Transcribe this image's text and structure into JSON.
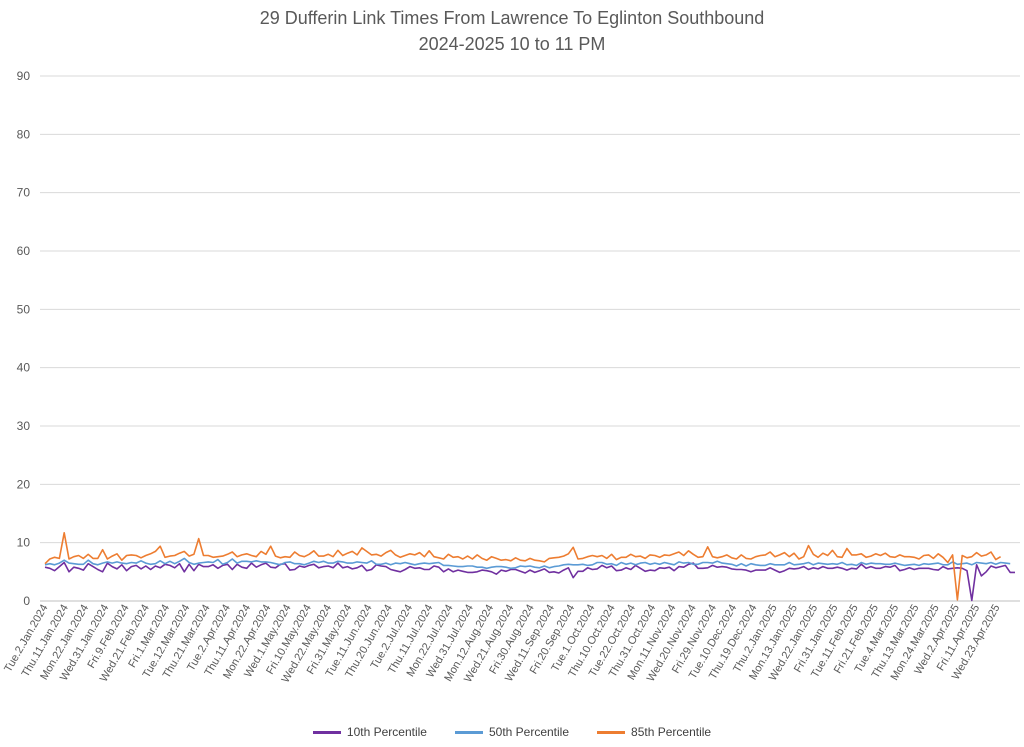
{
  "chart_data": {
    "type": "line",
    "title": "29 Dufferin Link Times From Lawrence To Eglinton Southbound",
    "subtitle": "2024-2025 10 to 11 PM",
    "xlabel": "",
    "ylabel": "",
    "ylim": [
      0,
      90
    ],
    "yticks": [
      0,
      10,
      20,
      30,
      40,
      50,
      60,
      70,
      80,
      90
    ],
    "grid": true,
    "legend_position": "bottom",
    "x_tick_labels": [
      "Tue.2.Jan.2024",
      "Thu.11.Jan.2024",
      "Mon.22.Jan.2024",
      "Wed.31.Jan.2024",
      "Fri.9.Feb.2024",
      "Wed.21.Feb.2024",
      "Fri.1.Mar.2024",
      "Tue.12.Mar.2024",
      "Thu.21.Mar.2024",
      "Tue.2.Apr.2024",
      "Thu.11.Apr.2024",
      "Mon.22.Apr.2024",
      "Wed.1.May.2024",
      "Fri.10.May.2024",
      "Wed.22.May.2024",
      "Fri.31.May.2024",
      "Tue.11.Jun.2024",
      "Thu.20.Jun.2024",
      "Tue.2.Jul.2024",
      "Thu.11.Jul.2024",
      "Mon.22.Jul.2024",
      "Wed.31.Jul.2024",
      "Mon.12.Aug.2024",
      "Wed.21.Aug.2024",
      "Fri.30.Aug.2024",
      "Wed.11.Sep.2024",
      "Fri.20.Sep.2024",
      "Tue.1.Oct.2024",
      "Thu.10.Oct.2024",
      "Tue.22.Oct.2024",
      "Thu.31.Oct.2024",
      "Mon.11.Nov.2024",
      "Wed.20.Nov.2024",
      "Fri.29.Nov.2024",
      "Tue.10.Dec.2024",
      "Thu.19.Dec.2024",
      "Thu.2.Jan.2025",
      "Mon.13.Jan.2025",
      "Wed.22.Jan.2025",
      "Fri.31.Jan.2025",
      "Tue.11.Feb.2025",
      "Fri.21.Feb.2025",
      "Tue.4.Mar.2025",
      "Thu.13.Mar.2025",
      "Mon.24.Mar.2025",
      "Wed.2.Apr.2025",
      "Fri.11.Apr.2025",
      "Wed.23.Apr.2025"
    ],
    "series": [
      {
        "name": "10th Percentile",
        "color": "#7030a0",
        "values": [
          5.8,
          5.6,
          5.2,
          5.9,
          6.6,
          5.0,
          5.8,
          5.6,
          5.3,
          6.4,
          5.9,
          5.4,
          5.0,
          6.5,
          5.9,
          5.5,
          6.2,
          5.2,
          5.9,
          6.1,
          5.5,
          6.0,
          5.4,
          6.0,
          5.7,
          6.3,
          6.1,
          5.7,
          6.4,
          5.0,
          6.3,
          5.2,
          6.3,
          5.9,
          5.9,
          6.2,
          5.6,
          6.1,
          6.3,
          5.4,
          6.3,
          5.8,
          5.6,
          6.5,
          5.8,
          6.2,
          6.5,
          5.8,
          5.7,
          6.3,
          6.4,
          5.3,
          5.4,
          6.0,
          5.8,
          6.1,
          6.3,
          5.7,
          5.9,
          6.0,
          5.7,
          6.5,
          5.7,
          5.9,
          5.5,
          5.7,
          6.1,
          5.2,
          5.4,
          6.2,
          6.0,
          5.9,
          5.4,
          5.2,
          5.0,
          5.4,
          5.9,
          5.6,
          5.7,
          5.4,
          5.4,
          6.0,
          5.8,
          5.0,
          5.5,
          5.0,
          5.3,
          5.1,
          4.9,
          4.9,
          5.0,
          5.3,
          5.2,
          5.0,
          4.6,
          5.3,
          5.1,
          5.4,
          5.4,
          5.1,
          4.8,
          5.3,
          4.9,
          5.2,
          5.5,
          4.9,
          5.0,
          4.8,
          5.3,
          5.7,
          4.0,
          5.1,
          5.1,
          5.7,
          5.4,
          5.5,
          6.1,
          5.7,
          6.0,
          5.2,
          5.3,
          5.7,
          5.4,
          6.1,
          5.6,
          5.1,
          5.3,
          5.2,
          5.7,
          5.6,
          5.8,
          5.2,
          5.9,
          5.8,
          6.3,
          6.5,
          5.6,
          5.6,
          5.7,
          6.1,
          5.8,
          5.9,
          5.8,
          5.5,
          5.4,
          5.4,
          5.3,
          5.0,
          5.3,
          5.3,
          5.3,
          5.7,
          5.3,
          4.9,
          5.2,
          5.6,
          5.5,
          5.6,
          5.9,
          5.4,
          5.7,
          5.5,
          5.9,
          5.6,
          5.6,
          5.8,
          5.6,
          5.3,
          5.6,
          5.5,
          6.3,
          5.6,
          5.9,
          5.6,
          5.6,
          5.9,
          5.8,
          6.1,
          5.2,
          5.4,
          5.7,
          5.4,
          5.6,
          5.6,
          5.6,
          5.4,
          5.3,
          5.9,
          5.5,
          5.6,
          5.7,
          5.6,
          5.2,
          0.1,
          6.2,
          4.3,
          5.0,
          6.0,
          5.7,
          5.9,
          6.1,
          4.9,
          4.9
        ]
      },
      {
        "name": "50th Percentile",
        "color": "#5b9bd5",
        "values": [
          6.2,
          6.4,
          6.2,
          6.5,
          7.0,
          6.5,
          6.4,
          6.3,
          6.3,
          7.0,
          6.4,
          6.2,
          6.5,
          6.7,
          6.5,
          6.7,
          6.5,
          6.4,
          6.6,
          6.5,
          6.9,
          6.5,
          6.3,
          6.4,
          6.9,
          6.4,
          6.8,
          6.4,
          6.8,
          7.3,
          6.6,
          6.3,
          6.5,
          6.6,
          6.7,
          6.6,
          7.1,
          6.3,
          6.6,
          7.2,
          6.5,
          6.8,
          6.8,
          6.7,
          6.9,
          6.7,
          6.7,
          6.6,
          6.4,
          6.2,
          6.6,
          6.7,
          6.4,
          6.4,
          6.2,
          6.5,
          6.8,
          6.6,
          6.8,
          6.5,
          6.5,
          6.8,
          6.7,
          6.5,
          6.5,
          6.7,
          6.6,
          6.5,
          6.9,
          6.3,
          6.3,
          6.5,
          6.2,
          6.5,
          6.4,
          6.6,
          6.4,
          6.2,
          6.4,
          6.5,
          6.4,
          6.5,
          6.6,
          6.1,
          6.1,
          6.0,
          5.9,
          5.9,
          6.0,
          6.0,
          5.8,
          5.8,
          5.6,
          5.8,
          5.9,
          5.9,
          5.8,
          5.6,
          5.7,
          6.0,
          5.9,
          6.0,
          5.8,
          5.7,
          6.0,
          5.7,
          5.9,
          6.0,
          6.2,
          6.3,
          6.2,
          6.2,
          6.3,
          6.1,
          6.2,
          6.6,
          6.6,
          6.3,
          6.4,
          6.1,
          6.6,
          6.3,
          6.5,
          6.2,
          6.5,
          6.6,
          6.3,
          6.5,
          6.3,
          6.6,
          6.4,
          6.2,
          6.7,
          6.5,
          6.6,
          6.3,
          6.3,
          6.6,
          6.6,
          6.5,
          6.8,
          6.5,
          6.4,
          6.3,
          6.0,
          6.4,
          6.0,
          6.4,
          6.2,
          6.1,
          6.1,
          6.4,
          6.2,
          6.2,
          6.2,
          6.6,
          6.2,
          6.3,
          6.4,
          6.6,
          6.2,
          6.5,
          6.4,
          6.3,
          6.4,
          6.3,
          6.6,
          6.2,
          6.3,
          6.1,
          6.6,
          6.3,
          6.5,
          6.4,
          6.4,
          6.3,
          6.3,
          6.5,
          6.3,
          6.1,
          6.2,
          6.3,
          6.1,
          6.4,
          6.3,
          6.4,
          6.5,
          6.2,
          6.2,
          6.7,
          6.3,
          6.4,
          6.5,
          6.2,
          6.6,
          6.5,
          6.4,
          6.6,
          6.3,
          6.6,
          6.5,
          6.4
        ]
      },
      {
        "name": "85th Percentile",
        "color": "#ed7d31",
        "values": [
          6.4,
          7.2,
          7.5,
          7.3,
          11.7,
          7.2,
          7.6,
          7.8,
          7.3,
          8.0,
          7.3,
          7.3,
          8.8,
          7.2,
          7.7,
          8.1,
          7.0,
          7.8,
          7.9,
          7.8,
          7.4,
          7.8,
          8.1,
          8.5,
          9.4,
          7.5,
          7.7,
          7.8,
          8.2,
          8.5,
          7.7,
          8.0,
          10.7,
          7.8,
          7.8,
          7.5,
          7.6,
          7.7,
          8.0,
          8.4,
          7.6,
          7.9,
          8.1,
          7.8,
          7.6,
          8.5,
          8.0,
          9.4,
          7.7,
          7.4,
          7.6,
          7.5,
          8.4,
          7.8,
          7.6,
          8.0,
          8.6,
          7.7,
          7.7,
          8.0,
          7.6,
          8.7,
          7.8,
          8.2,
          8.5,
          7.9,
          9.1,
          8.5,
          7.9,
          8.0,
          7.7,
          8.3,
          8.7,
          7.9,
          7.5,
          7.8,
          8.1,
          7.9,
          8.3,
          7.6,
          8.6,
          7.6,
          7.4,
          7.2,
          8.0,
          7.5,
          7.6,
          7.2,
          7.7,
          7.2,
          7.9,
          7.3,
          7.0,
          7.6,
          7.3,
          7.0,
          7.1,
          6.9,
          7.4,
          7.0,
          6.9,
          7.3,
          7.0,
          6.9,
          6.7,
          7.3,
          7.4,
          7.5,
          7.7,
          8.1,
          9.2,
          7.2,
          7.3,
          7.6,
          7.8,
          7.6,
          7.8,
          7.3,
          8.0,
          7.1,
          7.5,
          7.5,
          8.0,
          7.6,
          7.7,
          7.3,
          7.9,
          7.8,
          7.5,
          7.9,
          7.8,
          8.1,
          8.4,
          7.8,
          8.6,
          8.0,
          7.5,
          7.6,
          9.3,
          7.6,
          7.4,
          7.6,
          7.9,
          7.4,
          7.2,
          7.9,
          7.3,
          7.2,
          7.6,
          7.8,
          7.9,
          8.4,
          7.6,
          7.9,
          8.3,
          7.6,
          8.2,
          7.2,
          7.6,
          9.5,
          8.0,
          7.5,
          8.2,
          7.8,
          8.7,
          7.6,
          7.5,
          9.0,
          7.9,
          7.9,
          8.1,
          7.5,
          7.7,
          8.1,
          7.8,
          8.2,
          7.6,
          7.5,
          7.9,
          7.6,
          7.6,
          7.5,
          7.2,
          7.8,
          7.9,
          7.3,
          8.1,
          7.5,
          6.6,
          7.9,
          0.2,
          7.8,
          7.4,
          7.6,
          8.3,
          7.7,
          7.9,
          8.4,
          7.1,
          7.6
        ]
      }
    ]
  }
}
